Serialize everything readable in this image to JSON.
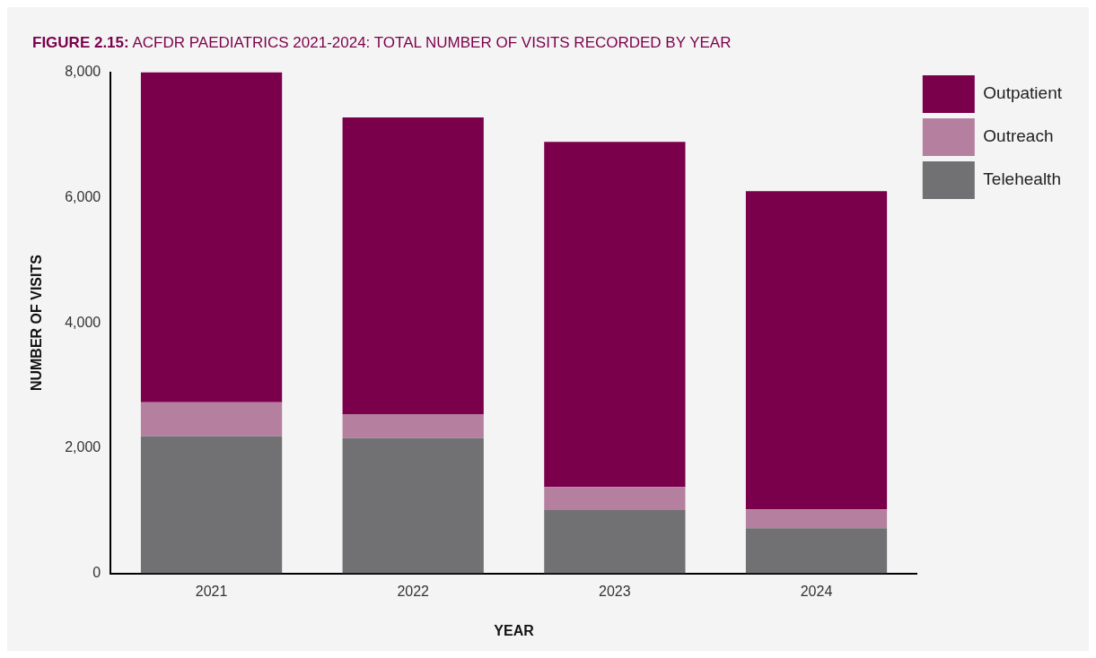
{
  "chart_data": {
    "type": "bar",
    "title": "FIGURE 2.15: ACFDR PAEDIATRICS 2021-2024: TOTAL NUMBER OF VISITS RECORDED BY YEAR",
    "xlabel": "YEAR",
    "ylabel": "NUMBER OF VISITS",
    "categories": [
      "2021",
      "2022",
      "2023",
      "2024"
    ],
    "series": [
      {
        "name": "Telehealth",
        "color": "#717072",
        "values": [
          2190,
          2160,
          1010,
          720
        ]
      },
      {
        "name": "Outreach",
        "color": "#b5809f",
        "values": [
          540,
          380,
          370,
          300
        ]
      },
      {
        "name": "Outpatient",
        "color": "#7b004b",
        "values": [
          5270,
          4740,
          5510,
          5080
        ]
      }
    ],
    "stacked": true,
    "ylim": [
      0,
      8000
    ],
    "yticks": [
      {
        "value": 0,
        "label": "0"
      },
      {
        "value": 2000,
        "label": "2,000"
      },
      {
        "value": 4000,
        "label": "4,000"
      },
      {
        "value": 6000,
        "label": "6,000"
      },
      {
        "value": 8000,
        "label": "8,000"
      }
    ],
    "grid": false,
    "legend": "top right"
  }
}
